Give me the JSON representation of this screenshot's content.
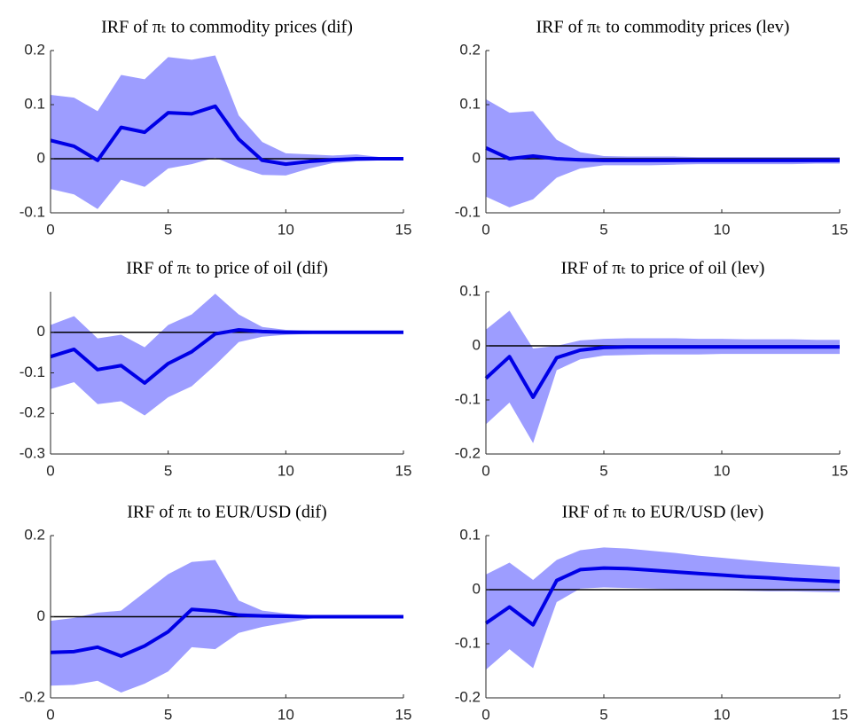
{
  "chart_data": [
    {
      "type": "line",
      "title": "IRF of πₜ to commodity prices (dif)",
      "x": [
        0,
        1,
        2,
        3,
        4,
        5,
        6,
        7,
        8,
        9,
        10,
        11,
        12,
        13,
        14,
        15
      ],
      "values": [
        0.034,
        0.023,
        -0.003,
        0.058,
        0.049,
        0.085,
        0.083,
        0.097,
        0.036,
        -0.003,
        -0.01,
        -0.005,
        -0.002,
        0,
        0,
        0
      ],
      "upper": [
        0.118,
        0.113,
        0.088,
        0.155,
        0.147,
        0.188,
        0.183,
        0.191,
        0.08,
        0.031,
        0.01,
        0.008,
        0.006,
        0.008,
        0.003,
        0.001
      ],
      "lower": [
        -0.056,
        -0.066,
        -0.093,
        -0.039,
        -0.052,
        -0.018,
        -0.01,
        0.002,
        -0.016,
        -0.03,
        -0.031,
        -0.018,
        -0.008,
        -0.005,
        -0.003,
        -0.001
      ],
      "color": "#0000e6",
      "band_color": "#9d9dff",
      "zero_line": true,
      "xlim": [
        0,
        15
      ],
      "xticks": [
        0,
        5,
        10,
        15
      ],
      "ylim": [
        -0.1,
        0.2
      ],
      "yticks": [
        -0.1,
        0,
        0.1,
        0.2
      ]
    },
    {
      "type": "line",
      "title": "IRF of πₜ to commodity prices (lev)",
      "x": [
        0,
        1,
        2,
        3,
        4,
        5,
        6,
        7,
        8,
        9,
        10,
        11,
        12,
        13,
        14,
        15
      ],
      "values": [
        0.02,
        0,
        0.005,
        0,
        -0.002,
        -0.003,
        -0.003,
        -0.003,
        -0.003,
        -0.003,
        -0.003,
        -0.003,
        -0.003,
        -0.003,
        -0.003,
        -0.003
      ],
      "upper": [
        0.11,
        0.085,
        0.088,
        0.035,
        0.012,
        0.005,
        0.004,
        0.004,
        0.004,
        0.003,
        0.003,
        0.003,
        0.003,
        0.003,
        0.003,
        0.003
      ],
      "lower": [
        -0.07,
        -0.09,
        -0.075,
        -0.035,
        -0.018,
        -0.012,
        -0.012,
        -0.012,
        -0.011,
        -0.01,
        -0.01,
        -0.01,
        -0.01,
        -0.01,
        -0.009,
        -0.009
      ],
      "color": "#0000e6",
      "band_color": "#9d9dff",
      "zero_line": true,
      "xlim": [
        0,
        15
      ],
      "xticks": [
        0,
        5,
        10,
        15
      ],
      "ylim": [
        -0.1,
        0.2
      ],
      "yticks": [
        -0.1,
        0,
        0.1,
        0.2
      ]
    },
    {
      "type": "line",
      "title": "IRF of πₜ to price of oil (dif)",
      "x": [
        0,
        1,
        2,
        3,
        4,
        5,
        6,
        7,
        8,
        9,
        10,
        11,
        12,
        13,
        14,
        15
      ],
      "values": [
        -0.06,
        -0.042,
        -0.092,
        -0.082,
        -0.125,
        -0.077,
        -0.048,
        -0.004,
        0.006,
        0.002,
        0,
        0,
        0,
        0,
        0,
        0
      ],
      "upper": [
        0.018,
        0.04,
        -0.015,
        -0.006,
        -0.037,
        0.018,
        0.044,
        0.095,
        0.044,
        0.013,
        0.006,
        0.004,
        0.002,
        0.002,
        0.002,
        0.002
      ],
      "lower": [
        -0.14,
        -0.123,
        -0.177,
        -0.17,
        -0.205,
        -0.16,
        -0.133,
        -0.081,
        -0.024,
        -0.011,
        -0.006,
        -0.004,
        -0.002,
        -0.002,
        -0.002,
        -0.002
      ],
      "color": "#0000e6",
      "band_color": "#9d9dff",
      "zero_line": true,
      "xlim": [
        0,
        15
      ],
      "xticks": [
        0,
        5,
        10,
        15
      ],
      "ylim": [
        -0.3,
        0.1
      ],
      "yticks": [
        -0.3,
        -0.2,
        -0.1,
        0
      ]
    },
    {
      "type": "line",
      "title": "IRF of πₜ to price of oil (lev)",
      "x": [
        0,
        1,
        2,
        3,
        4,
        5,
        6,
        7,
        8,
        9,
        10,
        11,
        12,
        13,
        14,
        15
      ],
      "values": [
        -0.06,
        -0.02,
        -0.095,
        -0.022,
        -0.008,
        -0.003,
        -0.002,
        -0.002,
        -0.002,
        -0.002,
        -0.002,
        -0.002,
        -0.002,
        -0.002,
        -0.002,
        -0.002
      ],
      "upper": [
        0.03,
        0.065,
        -0.005,
        0,
        0.01,
        0.013,
        0.014,
        0.014,
        0.014,
        0.013,
        0.013,
        0.012,
        0.012,
        0.012,
        0.011,
        0.011
      ],
      "lower": [
        -0.145,
        -0.105,
        -0.18,
        -0.045,
        -0.025,
        -0.018,
        -0.017,
        -0.016,
        -0.016,
        -0.016,
        -0.015,
        -0.015,
        -0.015,
        -0.015,
        -0.015,
        -0.015
      ],
      "color": "#0000e6",
      "band_color": "#9d9dff",
      "zero_line": true,
      "xlim": [
        0,
        15
      ],
      "xticks": [
        0,
        5,
        10,
        15
      ],
      "ylim": [
        -0.2,
        0.1
      ],
      "yticks": [
        -0.2,
        -0.1,
        0,
        0.1
      ]
    },
    {
      "type": "line",
      "title": "IRF of πₜ to EUR/USD (dif)",
      "x": [
        0,
        1,
        2,
        3,
        4,
        5,
        6,
        7,
        8,
        9,
        10,
        11,
        12,
        13,
        14,
        15
      ],
      "values": [
        -0.088,
        -0.086,
        -0.075,
        -0.097,
        -0.072,
        -0.037,
        0.018,
        0.014,
        0.004,
        0.002,
        0.001,
        0,
        0,
        0,
        0,
        0
      ],
      "upper": [
        -0.01,
        -0.003,
        0.01,
        0.015,
        0.06,
        0.105,
        0.135,
        0.14,
        0.04,
        0.015,
        0.008,
        0.003,
        0.001,
        0.001,
        0.001,
        0.001
      ],
      "lower": [
        -0.17,
        -0.168,
        -0.158,
        -0.187,
        -0.165,
        -0.135,
        -0.075,
        -0.08,
        -0.04,
        -0.025,
        -0.015,
        -0.005,
        -0.002,
        -0.002,
        -0.002,
        -0.002
      ],
      "color": "#0000e6",
      "band_color": "#9d9dff",
      "zero_line": true,
      "xlim": [
        0,
        15
      ],
      "xticks": [
        0,
        5,
        10,
        15
      ],
      "ylim": [
        -0.2,
        0.2
      ],
      "yticks": [
        -0.2,
        0,
        0.2
      ]
    },
    {
      "type": "line",
      "title": "IRF of πₜ to EUR/USD (lev)",
      "x": [
        0,
        1,
        2,
        3,
        4,
        5,
        6,
        7,
        8,
        9,
        10,
        11,
        12,
        13,
        14,
        15
      ],
      "values": [
        -0.062,
        -0.032,
        -0.065,
        0.017,
        0.037,
        0.04,
        0.039,
        0.036,
        0.033,
        0.03,
        0.027,
        0.024,
        0.022,
        0.019,
        0.017,
        0.015
      ],
      "upper": [
        0.028,
        0.05,
        0.018,
        0.055,
        0.073,
        0.078,
        0.076,
        0.072,
        0.068,
        0.063,
        0.059,
        0.055,
        0.051,
        0.048,
        0.045,
        0.042
      ],
      "lower": [
        -0.148,
        -0.11,
        -0.145,
        -0.023,
        0.002,
        0.004,
        0.003,
        0.002,
        0.001,
        0,
        -0.001,
        -0.002,
        -0.003,
        -0.003,
        -0.004,
        -0.005
      ],
      "color": "#0000e6",
      "band_color": "#9d9dff",
      "zero_line": true,
      "xlim": [
        0,
        15
      ],
      "xticks": [
        0,
        5,
        10,
        15
      ],
      "ylim": [
        -0.2,
        0.1
      ],
      "yticks": [
        -0.2,
        -0.1,
        0,
        0.1
      ]
    }
  ]
}
